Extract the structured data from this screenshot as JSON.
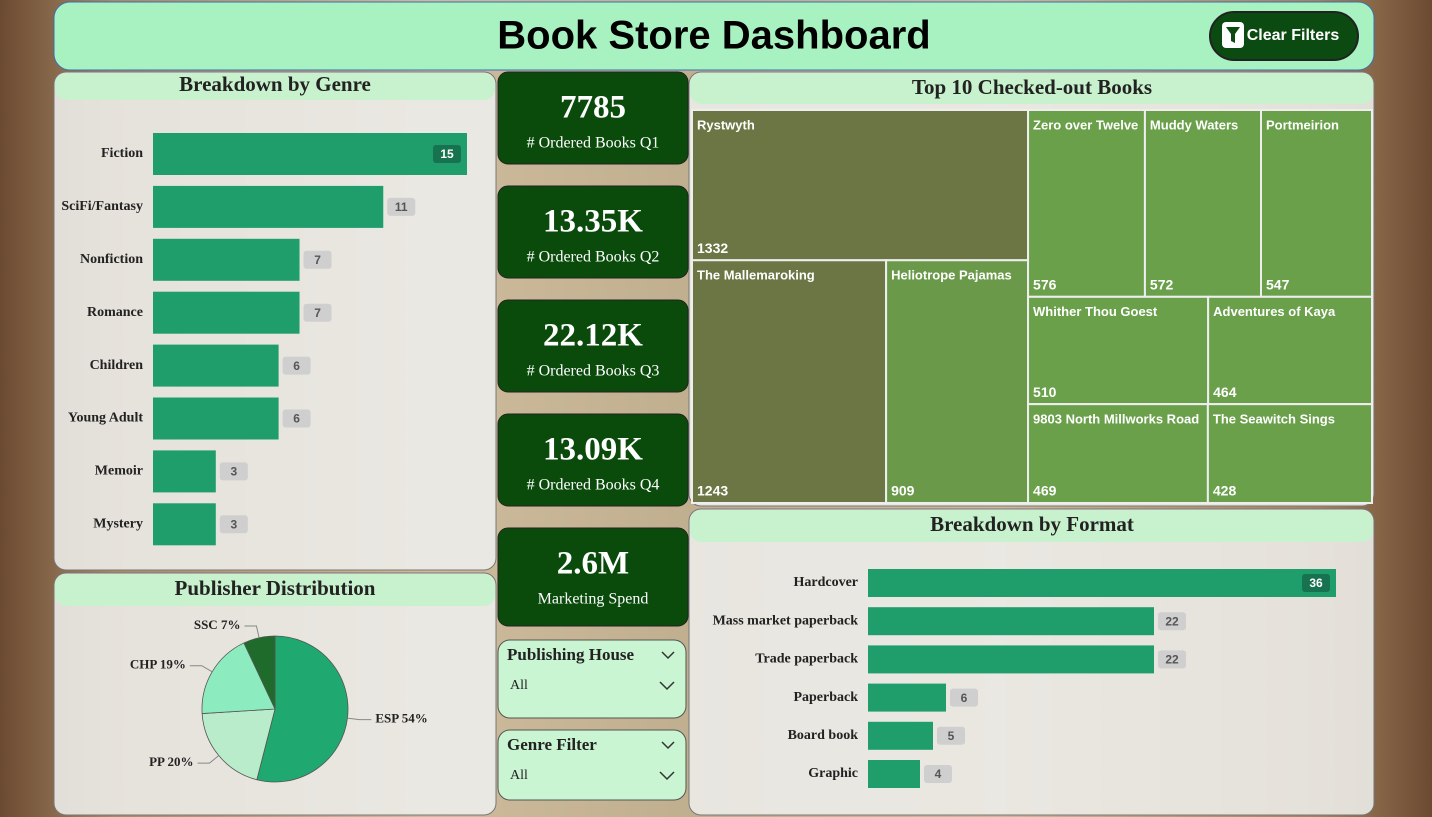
{
  "header": {
    "title": "Book Store Dashboard",
    "button": "Clear Filters"
  },
  "kpis": [
    {
      "value_text": "7785",
      "label": "# Ordered Books Q1"
    },
    {
      "value_text": "13.35K",
      "label": "# Ordered Books Q2"
    },
    {
      "value_text": "22.12K",
      "label": "# Ordered Books Q3"
    },
    {
      "value_text": "13.09K",
      "label": "# Ordered Books Q4"
    },
    {
      "value_text": "2.6M",
      "label": "Marketing Spend"
    }
  ],
  "filters": [
    {
      "label": "Publishing House",
      "selection": "All"
    },
    {
      "label": "Genre Filter",
      "selection": "All"
    }
  ],
  "chart_data": [
    {
      "type": "bar",
      "orientation": "horizontal",
      "title": "Breakdown by Genre",
      "categories": [
        "Fiction",
        "SciFi/Fantasy",
        "Nonfiction",
        "Romance",
        "Children",
        "Young Adult",
        "Memoir",
        "Mystery"
      ],
      "values": [
        15,
        11,
        7,
        7,
        6,
        6,
        3,
        3
      ],
      "color": "#1f9e6c"
    },
    {
      "type": "pie",
      "title": "Publisher Distribution",
      "values": [
        54,
        20,
        19,
        7
      ],
      "value_labels": [
        "ESP 54%",
        "PP 20%",
        "CHP 19%",
        "SSC 7%"
      ],
      "colors": [
        "#1fa870",
        "#b8ecca",
        "#8cecbf",
        "#1e6b2c"
      ]
    },
    {
      "type": "treemap",
      "title": "Top 10 Checked-out Books",
      "categories": [
        "Rystwyth",
        "The Mallemaroking",
        "Heliotrope Pajamas",
        "Zero over Twelve",
        "Muddy Waters",
        "Portmeirion",
        "Whither Thou Goest",
        "Adventures of Kaya",
        "9803 North Millworks Road",
        "The Seawitch Sings"
      ],
      "values": [
        1332,
        1243,
        909,
        576,
        572,
        547,
        510,
        464,
        469,
        428
      ],
      "colors": [
        "#6b7644",
        "#6b7644",
        "#6a9a49",
        "#6aa04a",
        "#6aa04a",
        "#6aa04a",
        "#6aa04a",
        "#6aa04a",
        "#6aa04a",
        "#6aa04a"
      ]
    },
    {
      "type": "bar",
      "orientation": "horizontal",
      "title": "Breakdown by Format",
      "categories": [
        "Hardcover",
        "Mass market paperback",
        "Trade paperback",
        "Paperback",
        "Board book",
        "Graphic"
      ],
      "values": [
        36,
        22,
        22,
        6,
        5,
        4
      ],
      "color": "#1f9e6c"
    }
  ]
}
